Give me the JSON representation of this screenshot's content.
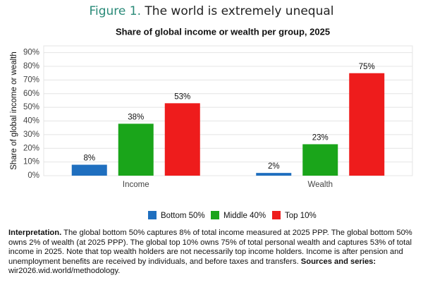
{
  "header": {
    "figure_label": "Figure 1.",
    "title": "The world is extremely unequal"
  },
  "chart_data": {
    "type": "bar",
    "title": "Share of global income or wealth per group, 2025",
    "y_label": "Share of global income or wealth",
    "categories": [
      "Income",
      "Wealth"
    ],
    "series": [
      {
        "name": "Bottom 50%",
        "color": "#1f6fbf",
        "values": [
          8,
          2
        ],
        "value_labels": [
          "8%",
          "2%"
        ]
      },
      {
        "name": "Middle 40%",
        "color": "#1aa51a",
        "values": [
          38,
          23
        ],
        "value_labels": [
          "38%",
          "23%"
        ]
      },
      {
        "name": "Top 10%",
        "color": "#ee1c1c",
        "values": [
          53,
          75
        ],
        "value_labels": [
          "53%",
          "75%"
        ]
      }
    ],
    "ylim": [
      0,
      95
    ],
    "yticks": [
      {
        "value": 0,
        "label": "0%"
      },
      {
        "value": 10,
        "label": "10%"
      },
      {
        "value": 20,
        "label": "20%"
      },
      {
        "value": 30,
        "label": "30%"
      },
      {
        "value": 40,
        "label": "40%"
      },
      {
        "value": 50,
        "label": "50%"
      },
      {
        "value": 60,
        "label": "60%"
      },
      {
        "value": 70,
        "label": "70%"
      },
      {
        "value": 80,
        "label": "80%"
      },
      {
        "value": 90,
        "label": "90%"
      }
    ],
    "grid": true,
    "legend": "bottom"
  },
  "note": {
    "label": "Interpretation.",
    "text": "The global bottom 50% captures 8% of total income measured at 2025 PPP. The global bottom 50% owns 2% of wealth (at 2025 PPP). The global top 10% owns 75% of total personal wealth and captures 53% of total income in 2025. Note that top wealth holders are not necessarily top income holders. Income is after pension and unemployment benefits are received by individuals, and before taxes and transfers.",
    "sources_label": "Sources and series:",
    "sources": "wir2026.wid.world/methodology."
  }
}
